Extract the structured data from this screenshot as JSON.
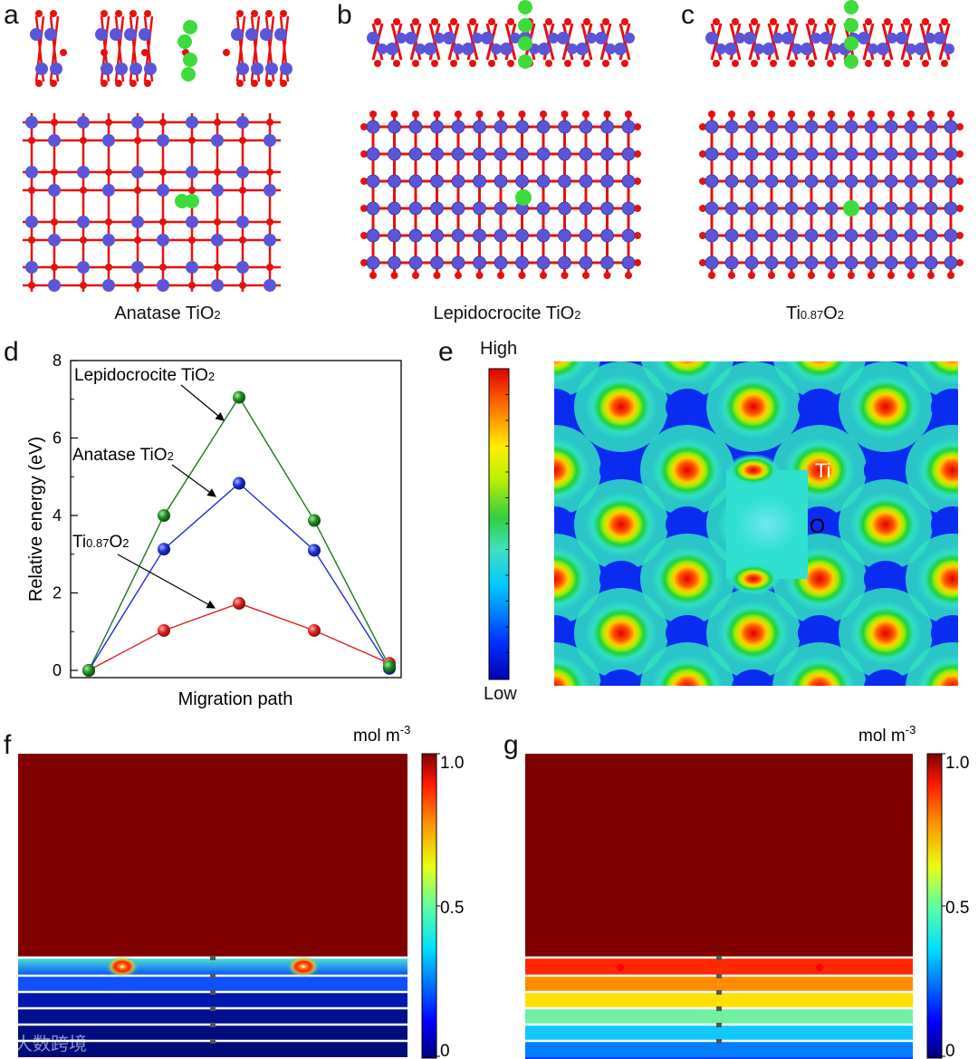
{
  "panels": {
    "a": {
      "letter": "a",
      "caption": {
        "main": "Anatase TiO",
        "sub": "2"
      }
    },
    "b": {
      "letter": "b",
      "caption": {
        "main": "Lepidocrocite TiO",
        "sub": "2"
      }
    },
    "c": {
      "letter": "c",
      "caption": {
        "main_prefix": "Ti",
        "sub1": "0.87",
        "main_mid": "O",
        "sub2": "2"
      }
    },
    "d": {
      "letter": "d"
    },
    "e": {
      "letter": "e",
      "colorbar_high": "High",
      "colorbar_low": "Low",
      "label_ti": "Ti",
      "label_o": "O"
    },
    "f": {
      "letter": "f",
      "unit": "mol m",
      "unit_sup": "-3",
      "ticks": [
        "1.0",
        "0.5",
        "0"
      ]
    },
    "g": {
      "letter": "g",
      "unit": "mol m",
      "unit_sup": "-3",
      "ticks": [
        "1.0",
        "0.5",
        "0"
      ]
    }
  },
  "watermark": "大数跨境",
  "colors": {
    "ti_atom": "#5b55d8",
    "o_atom": "#e8100e",
    "li_atom": "#3ddc3a",
    "series_lepidocrocite": "#1a7a1a",
    "series_anatase": "#1f2fd6",
    "series_ti087": "#e02020"
  },
  "chart_data": {
    "type": "line",
    "xlabel": "Migration path",
    "ylabel": "Relative energy (eV)",
    "ylim": [
      0,
      8
    ],
    "yticks": [
      "0",
      "2",
      "4",
      "6",
      "8"
    ],
    "x": [
      0,
      1,
      2,
      3,
      4
    ],
    "series": [
      {
        "name": "Lepidocrocite TiO2",
        "name_main": "Lepidocrocite TiO",
        "name_sub": "2",
        "values": [
          0,
          4.0,
          7.05,
          3.87,
          0.1
        ]
      },
      {
        "name": "Anatase TiO2",
        "name_main": "Anatase TiO",
        "name_sub": "2",
        "values": [
          0,
          3.13,
          4.83,
          3.1,
          0.05
        ]
      },
      {
        "name": "Ti0.87O2",
        "name_main": "Ti",
        "name_sub": "0.87",
        "name_main2": "O",
        "name_sub2": "2",
        "values": [
          0,
          1.03,
          1.73,
          1.03,
          0.18
        ]
      }
    ]
  }
}
